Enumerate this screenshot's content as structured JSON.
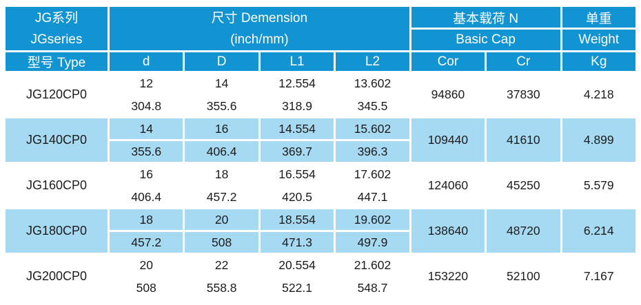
{
  "colors": {
    "header_blue": "#1294d2",
    "row_highlight_blue": "#a6d9f2",
    "row_white": "#ffffff",
    "header_text": "#ffffff",
    "body_text": "#1c1c1c"
  },
  "header": {
    "series_cn": "JG系列",
    "series_en": "JGseries",
    "dimension_title": "尺寸 Demension",
    "dimension_unit": "(inch/mm)",
    "basic_load_cn": "基本载荷 N",
    "basic_load_en": "Basic Cap",
    "weight_cn": "单重",
    "weight_en": "Weight",
    "type_label": "型号 Type",
    "col_d": "d",
    "col_D": "D",
    "col_L1": "L1",
    "col_L2": "L2",
    "col_cor": "Cor",
    "col_cr": "Cr",
    "col_kg": "Kg"
  },
  "rows": [
    {
      "model": "JG120CP0",
      "inch": [
        "12",
        "14",
        "12.554",
        "13.602"
      ],
      "mm": [
        "304.8",
        "355.6",
        "318.9",
        "345.5"
      ],
      "cor": "94860",
      "cr": "37830",
      "kg": "4.218",
      "highlight": false
    },
    {
      "model": "JG140CP0",
      "inch": [
        "14",
        "16",
        "14.554",
        "15.602"
      ],
      "mm": [
        "355.6",
        "406.4",
        "369.7",
        "396.3"
      ],
      "cor": "109440",
      "cr": "41610",
      "kg": "4.899",
      "highlight": true
    },
    {
      "model": "JG160CP0",
      "inch": [
        "16",
        "18",
        "16.554",
        "17.602"
      ],
      "mm": [
        "406.4",
        "457.2",
        "420.5",
        "447.1"
      ],
      "cor": "124060",
      "cr": "45250",
      "kg": "5.579",
      "highlight": false
    },
    {
      "model": "JG180CP0",
      "inch": [
        "18",
        "20",
        "18.554",
        "19.602"
      ],
      "mm": [
        "457.2",
        "508",
        "471.3",
        "497.9"
      ],
      "cor": "138640",
      "cr": "48720",
      "kg": "6.214",
      "highlight": true
    },
    {
      "model": "JG200CP0",
      "inch": [
        "20",
        "22",
        "20.554",
        "21.602"
      ],
      "mm": [
        "508",
        "558.8",
        "522.1",
        "548.7"
      ],
      "cor": "153220",
      "cr": "52100",
      "kg": "7.167",
      "highlight": false
    }
  ]
}
